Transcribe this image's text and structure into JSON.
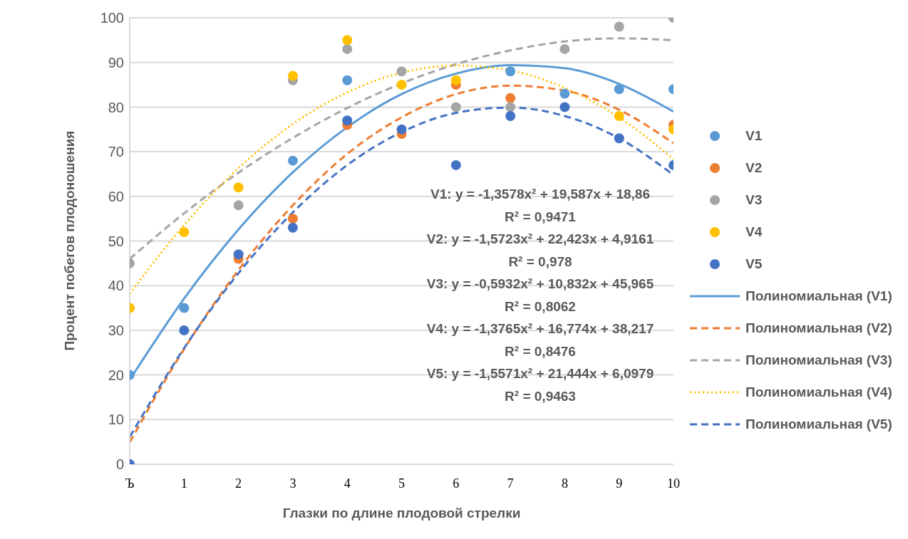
{
  "chart_data": {
    "type": "scatter",
    "xlabel": "Глазки по длине плодовой стрелки",
    "ylabel": "Процент побегов плодоношения",
    "x": [
      0,
      1,
      2,
      3,
      4,
      5,
      6,
      7,
      8,
      9,
      10
    ],
    "xlim": [
      0,
      10
    ],
    "xticks": [
      {
        "value": 0,
        "label": "Ъ"
      },
      1,
      2,
      3,
      4,
      5,
      6,
      7,
      8,
      9,
      10
    ],
    "ylim": [
      0,
      100
    ],
    "yticks": [
      0,
      10,
      20,
      30,
      40,
      50,
      60,
      70,
      80,
      90,
      100
    ],
    "grid": "y",
    "legend": "right",
    "series": [
      {
        "name": "V1",
        "marker": "circle",
        "color": "#5b9bd5",
        "values": [
          20,
          35,
          null,
          68,
          86,
          null,
          null,
          88,
          83,
          84,
          84
        ]
      },
      {
        "name": "V2",
        "marker": "circle",
        "color": "#ed7d31",
        "values": [
          null,
          null,
          46,
          55,
          76,
          74,
          85,
          82,
          null,
          null,
          76
        ]
      },
      {
        "name": "V3",
        "marker": "circle",
        "color": "#a5a5a5",
        "values": [
          45,
          null,
          58,
          86,
          93,
          88,
          80,
          80,
          93,
          98,
          100
        ]
      },
      {
        "name": "V4",
        "marker": "circle",
        "color": "#ffc000",
        "values": [
          35,
          52,
          62,
          87,
          95,
          85,
          86,
          null,
          null,
          78,
          75
        ]
      },
      {
        "name": "V5",
        "marker": "circle",
        "color": "#4472c4",
        "values": [
          0,
          30,
          47,
          53,
          77,
          75,
          67,
          78,
          80,
          73,
          67
        ]
      },
      {
        "name": "Полиномиальная (V1)",
        "type": "line",
        "line_style": "solid",
        "color": "#5b9bd5",
        "values": [
          18.9,
          37.1,
          52.6,
          65.4,
          75.5,
          82.9,
          87.5,
          89.4,
          88.7,
          85.2,
          79
        ]
      },
      {
        "name": "Полиномиальная (V2)",
        "type": "line",
        "line_style": "dashed",
        "color": "#ed7d31",
        "values": [
          4.9,
          25.8,
          43.5,
          58,
          69.5,
          77.7,
          82.9,
          84.8,
          83.7,
          79.4,
          71.9
        ]
      },
      {
        "name": "Полиномиальная (V3)",
        "type": "line",
        "line_style": "dashed",
        "color": "#a5a5a5",
        "values": [
          46,
          56.2,
          65.3,
          73.1,
          79.8,
          85.3,
          89.6,
          92.7,
          94.7,
          95.4,
          95
        ]
      },
      {
        "name": "Полиномиальная (V4)",
        "type": "line",
        "line_style": "dotted",
        "color": "#ffc000",
        "values": [
          38.2,
          53.6,
          66.3,
          76.2,
          83.3,
          87.7,
          89.3,
          88.2,
          84.3,
          77.7,
          68.3
        ]
      },
      {
        "name": "Полиномиальная (V5)",
        "type": "line",
        "line_style": "dashed",
        "color": "#4472c4",
        "values": [
          6.1,
          26,
          42.8,
          56.4,
          67,
          74.4,
          78.7,
          79.9,
          78,
          73,
          64.8
        ]
      }
    ],
    "annotations": [
      "V1: y = -1,3578x² + 19,587x + 18,86",
      "R² = 0,9471",
      "V2: y = -1,5723x² + 22,423x + 4,9161",
      "R² = 0,978",
      "V3: y = -0,5932x² + 10,832x + 45,965",
      "R² = 0,8062",
      "V4: y = -1,3765x² + 16,774x + 38,217",
      "R² = 0,8476",
      "V5: y = -1,5571x² + 21,444x + 6,0979",
      "R² = 0,9463"
    ]
  }
}
